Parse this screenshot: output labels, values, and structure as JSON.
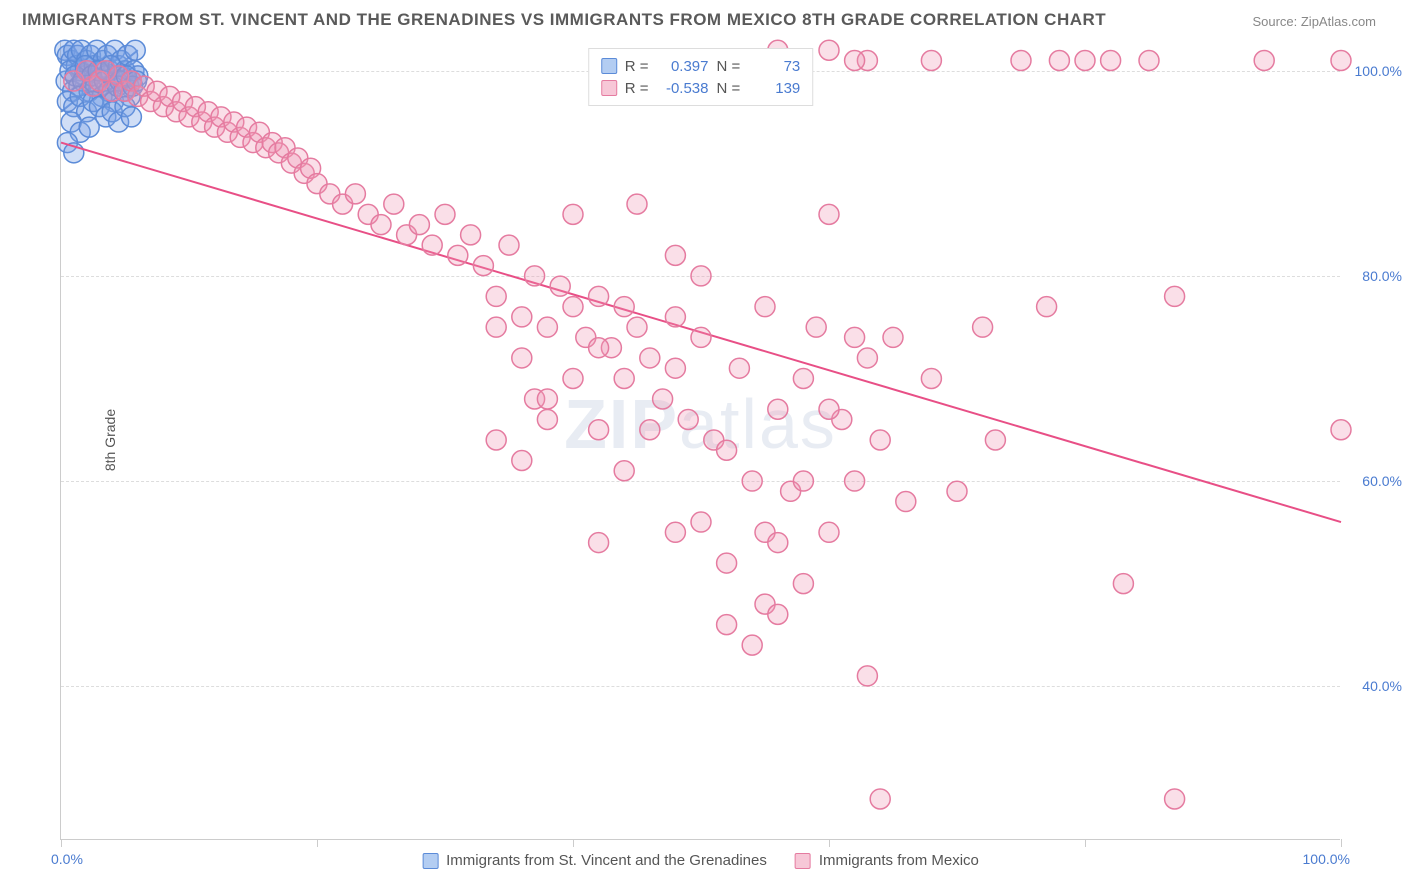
{
  "title": "IMMIGRANTS FROM ST. VINCENT AND THE GRENADINES VS IMMIGRANTS FROM MEXICO 8TH GRADE CORRELATION CHART",
  "source": "Source: ZipAtlas.com",
  "watermark_left": "ZIP",
  "watermark_right": "atlas",
  "ylabel": "8th Grade",
  "chart": {
    "type": "scatter",
    "xlim": [
      0,
      100
    ],
    "ylim": [
      25,
      103
    ],
    "ytick_values": [
      40,
      60,
      80,
      100
    ],
    "ytick_labels": [
      "40.0%",
      "60.0%",
      "80.0%",
      "100.0%"
    ],
    "xtick_values": [
      0,
      20,
      40,
      60,
      80,
      100
    ],
    "x_left_label": "0.0%",
    "x_right_label": "100.0%",
    "background_color": "#ffffff",
    "grid_color": "#dddddd",
    "grid_dash": "4,4",
    "marker_radius": 10,
    "marker_stroke_width": 1.5,
    "trend_line_width": 2,
    "series": [
      {
        "name": "Immigrants from St. Vincent and the Grenadines",
        "fill": "rgba(120,160,230,0.35)",
        "stroke": "#5b8bd8",
        "legend_swatch_fill": "#b3cdf2",
        "legend_swatch_stroke": "#5b8bd8",
        "r_label": "R =",
        "r_value": "0.397",
        "n_label": "N =",
        "n_value": "73",
        "trend": {
          "x1": 0,
          "y1": 96,
          "x2": 6,
          "y2": 102,
          "color": "#5b8bd8"
        },
        "points": [
          [
            0.3,
            102
          ],
          [
            0.5,
            101.5
          ],
          [
            0.8,
            101
          ],
          [
            1.0,
            102
          ],
          [
            1.2,
            100.5
          ],
          [
            1.3,
            101.5
          ],
          [
            1.5,
            100
          ],
          [
            1.6,
            102
          ],
          [
            1.8,
            99.5
          ],
          [
            2.0,
            101
          ],
          [
            2.1,
            100
          ],
          [
            2.3,
            101.5
          ],
          [
            2.5,
            99
          ],
          [
            2.6,
            100.5
          ],
          [
            2.8,
            102
          ],
          [
            3.0,
            98.5
          ],
          [
            3.1,
            100
          ],
          [
            3.3,
            101
          ],
          [
            3.5,
            99.5
          ],
          [
            3.6,
            101.5
          ],
          [
            3.8,
            100
          ],
          [
            4.0,
            98
          ],
          [
            4.2,
            102
          ],
          [
            4.3,
            99
          ],
          [
            4.5,
            100.5
          ],
          [
            4.7,
            101
          ],
          [
            4.8,
            99.5
          ],
          [
            5.0,
            100
          ],
          [
            5.2,
            101.5
          ],
          [
            5.3,
            98.5
          ],
          [
            5.5,
            99
          ],
          [
            5.7,
            100
          ],
          [
            5.8,
            102
          ],
          [
            6.0,
            99.5
          ],
          [
            0.4,
            99
          ],
          [
            0.7,
            100
          ],
          [
            0.9,
            98
          ],
          [
            1.1,
            99.5
          ],
          [
            1.4,
            98.5
          ],
          [
            1.7,
            99
          ],
          [
            1.9,
            100.5
          ],
          [
            2.2,
            98
          ],
          [
            2.4,
            99.5
          ],
          [
            2.7,
            98.5
          ],
          [
            2.9,
            100
          ],
          [
            3.2,
            97.5
          ],
          [
            3.4,
            99
          ],
          [
            3.7,
            98
          ],
          [
            3.9,
            100.5
          ],
          [
            4.1,
            97
          ],
          [
            4.4,
            98.5
          ],
          [
            4.6,
            99
          ],
          [
            4.9,
            98
          ],
          [
            5.1,
            99.5
          ],
          [
            5.4,
            97.5
          ],
          [
            5.6,
            98.5
          ],
          [
            5.9,
            99
          ],
          [
            0.5,
            97
          ],
          [
            1.0,
            96.5
          ],
          [
            1.5,
            97.5
          ],
          [
            2.0,
            96
          ],
          [
            2.5,
            97
          ],
          [
            3.0,
            96.5
          ],
          [
            3.5,
            95.5
          ],
          [
            4.0,
            96
          ],
          [
            4.5,
            95
          ],
          [
            5.0,
            96.5
          ],
          [
            5.5,
            95.5
          ],
          [
            0.8,
            95
          ],
          [
            1.5,
            94
          ],
          [
            2.2,
            94.5
          ],
          [
            0.5,
            93
          ],
          [
            1.0,
            92
          ]
        ]
      },
      {
        "name": "Immigrants from Mexico",
        "fill": "rgba(240,150,180,0.30)",
        "stroke": "#e57ba0",
        "legend_swatch_fill": "#f7c7d7",
        "legend_swatch_stroke": "#e57ba0",
        "r_label": "R =",
        "r_value": "-0.538",
        "n_label": "N =",
        "n_value": "139",
        "trend": {
          "x1": 0,
          "y1": 93,
          "x2": 100,
          "y2": 56,
          "color": "#e84f86"
        },
        "points": [
          [
            1,
            99
          ],
          [
            2,
            100
          ],
          [
            2.5,
            98.5
          ],
          [
            3,
            99
          ],
          [
            3.5,
            100
          ],
          [
            4,
            98
          ],
          [
            4.5,
            99.5
          ],
          [
            5,
            98
          ],
          [
            5.5,
            99
          ],
          [
            6,
            97.5
          ],
          [
            6.5,
            98.5
          ],
          [
            7,
            97
          ],
          [
            7.5,
            98
          ],
          [
            8,
            96.5
          ],
          [
            8.5,
            97.5
          ],
          [
            9,
            96
          ],
          [
            9.5,
            97
          ],
          [
            10,
            95.5
          ],
          [
            10.5,
            96.5
          ],
          [
            11,
            95
          ],
          [
            11.5,
            96
          ],
          [
            12,
            94.5
          ],
          [
            12.5,
            95.5
          ],
          [
            13,
            94
          ],
          [
            13.5,
            95
          ],
          [
            14,
            93.5
          ],
          [
            14.5,
            94.5
          ],
          [
            15,
            93
          ],
          [
            15.5,
            94
          ],
          [
            16,
            92.5
          ],
          [
            16.5,
            93
          ],
          [
            17,
            92
          ],
          [
            17.5,
            92.5
          ],
          [
            18,
            91
          ],
          [
            18.5,
            91.5
          ],
          [
            19,
            90
          ],
          [
            19.5,
            90.5
          ],
          [
            20,
            89
          ],
          [
            21,
            88
          ],
          [
            22,
            87
          ],
          [
            23,
            88
          ],
          [
            24,
            86
          ],
          [
            25,
            85
          ],
          [
            26,
            87
          ],
          [
            27,
            84
          ],
          [
            28,
            85
          ],
          [
            29,
            83
          ],
          [
            30,
            86
          ],
          [
            31,
            82
          ],
          [
            32,
            84
          ],
          [
            33,
            81
          ],
          [
            34,
            78
          ],
          [
            35,
            83
          ],
          [
            36,
            76
          ],
          [
            37,
            80
          ],
          [
            38,
            75
          ],
          [
            39,
            79
          ],
          [
            40,
            86
          ],
          [
            41,
            74
          ],
          [
            42,
            78
          ],
          [
            43,
            73
          ],
          [
            44,
            77
          ],
          [
            34,
            64
          ],
          [
            36,
            62
          ],
          [
            38,
            66
          ],
          [
            37,
            68
          ],
          [
            40,
            70
          ],
          [
            42,
            65
          ],
          [
            44,
            61
          ],
          [
            45,
            75
          ],
          [
            46,
            72
          ],
          [
            47,
            68
          ],
          [
            48,
            76
          ],
          [
            42,
            54
          ],
          [
            49,
            66
          ],
          [
            50,
            74
          ],
          [
            51,
            64
          ],
          [
            52,
            63
          ],
          [
            53,
            71
          ],
          [
            54,
            60
          ],
          [
            55,
            77
          ],
          [
            56,
            67
          ],
          [
            57,
            59
          ],
          [
            58,
            70
          ],
          [
            48,
            55
          ],
          [
            50,
            56
          ],
          [
            52,
            52
          ],
          [
            52,
            46
          ],
          [
            55,
            48
          ],
          [
            55,
            55
          ],
          [
            56,
            54
          ],
          [
            58,
            50
          ],
          [
            59,
            75
          ],
          [
            60,
            55
          ],
          [
            60,
            86
          ],
          [
            61,
            66
          ],
          [
            62,
            60
          ],
          [
            63,
            72
          ],
          [
            63,
            41
          ],
          [
            64,
            64
          ],
          [
            65,
            74
          ],
          [
            66,
            58
          ],
          [
            68,
            70
          ],
          [
            70,
            59
          ],
          [
            72,
            75
          ],
          [
            73,
            64
          ],
          [
            64,
            29
          ],
          [
            75,
            101
          ],
          [
            77,
            77
          ],
          [
            78,
            101
          ],
          [
            80,
            101
          ],
          [
            82,
            101
          ],
          [
            83,
            50
          ],
          [
            85,
            101
          ],
          [
            87,
            78
          ],
          [
            94,
            101
          ],
          [
            100,
            101
          ],
          [
            100,
            65
          ],
          [
            63,
            101
          ],
          [
            56,
            102
          ],
          [
            60,
            102
          ],
          [
            62,
            101
          ],
          [
            68,
            101
          ],
          [
            45,
            87
          ],
          [
            50,
            80
          ],
          [
            48,
            82
          ],
          [
            87,
            29
          ],
          [
            54,
            44
          ],
          [
            56,
            47
          ],
          [
            58,
            60
          ],
          [
            60,
            67
          ],
          [
            62,
            74
          ],
          [
            46,
            65
          ],
          [
            44,
            70
          ],
          [
            42,
            73
          ],
          [
            40,
            77
          ],
          [
            38,
            68
          ],
          [
            36,
            72
          ],
          [
            34,
            75
          ],
          [
            48,
            71
          ]
        ]
      }
    ]
  }
}
